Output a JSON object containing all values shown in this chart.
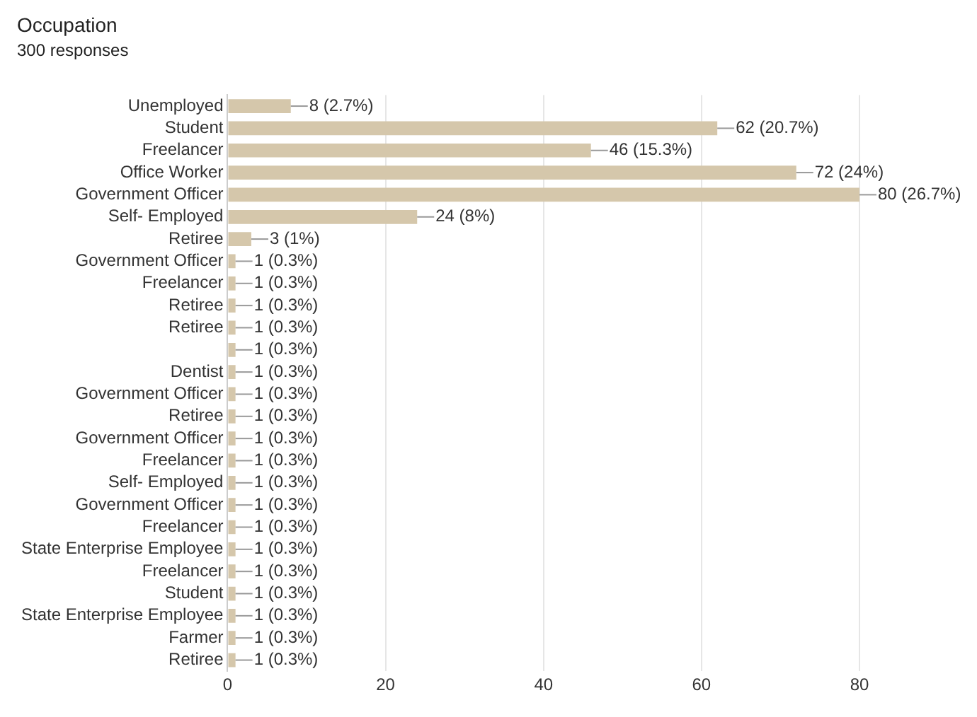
{
  "chart_data": {
    "type": "bar",
    "orientation": "horizontal",
    "title": "Occupation",
    "subtitle": "300 responses",
    "categories": [
      "Unemployed",
      "Student",
      "Freelancer",
      "Office Worker",
      "Government Officer",
      "Self- Employed",
      "Retiree",
      "Government Officer",
      "Freelancer",
      "Retiree",
      "Retiree",
      null,
      "Dentist",
      "Government Officer",
      "Retiree",
      "Government Officer",
      "Freelancer",
      "Self- Employed",
      "Government Officer",
      "Freelancer",
      "State Enterprise Employee",
      "Freelancer",
      "Student",
      "State Enterprise Employee",
      "Farmer",
      "Retiree"
    ],
    "values": [
      8,
      62,
      46,
      72,
      80,
      24,
      3,
      1,
      1,
      1,
      1,
      1,
      1,
      1,
      1,
      1,
      1,
      1,
      1,
      1,
      1,
      1,
      1,
      1,
      1,
      1
    ],
    "value_labels": [
      "8 (2.7%)",
      "62 (20.7%)",
      "46 (15.3%)",
      "72 (24%)",
      "80 (26.7%)",
      "24 (8%)",
      "3 (1%)",
      "1 (0.3%)",
      "1 (0.3%)",
      "1 (0.3%)",
      "1 (0.3%)",
      "1 (0.3%)",
      "1 (0.3%)",
      "1 (0.3%)",
      "1 (0.3%)",
      "1 (0.3%)",
      "1 (0.3%)",
      "1 (0.3%)",
      "1 (0.3%)",
      "1 (0.3%)",
      "1 (0.3%)",
      "1 (0.3%)",
      "1 (0.3%)",
      "1 (0.3%)",
      "1 (0.3%)",
      "1 (0.3%)"
    ],
    "color": "#d5c7ab",
    "xlim": [
      0,
      80
    ],
    "xticks": [
      0,
      20,
      40,
      60,
      80
    ],
    "grid": "x",
    "legend": false
  }
}
